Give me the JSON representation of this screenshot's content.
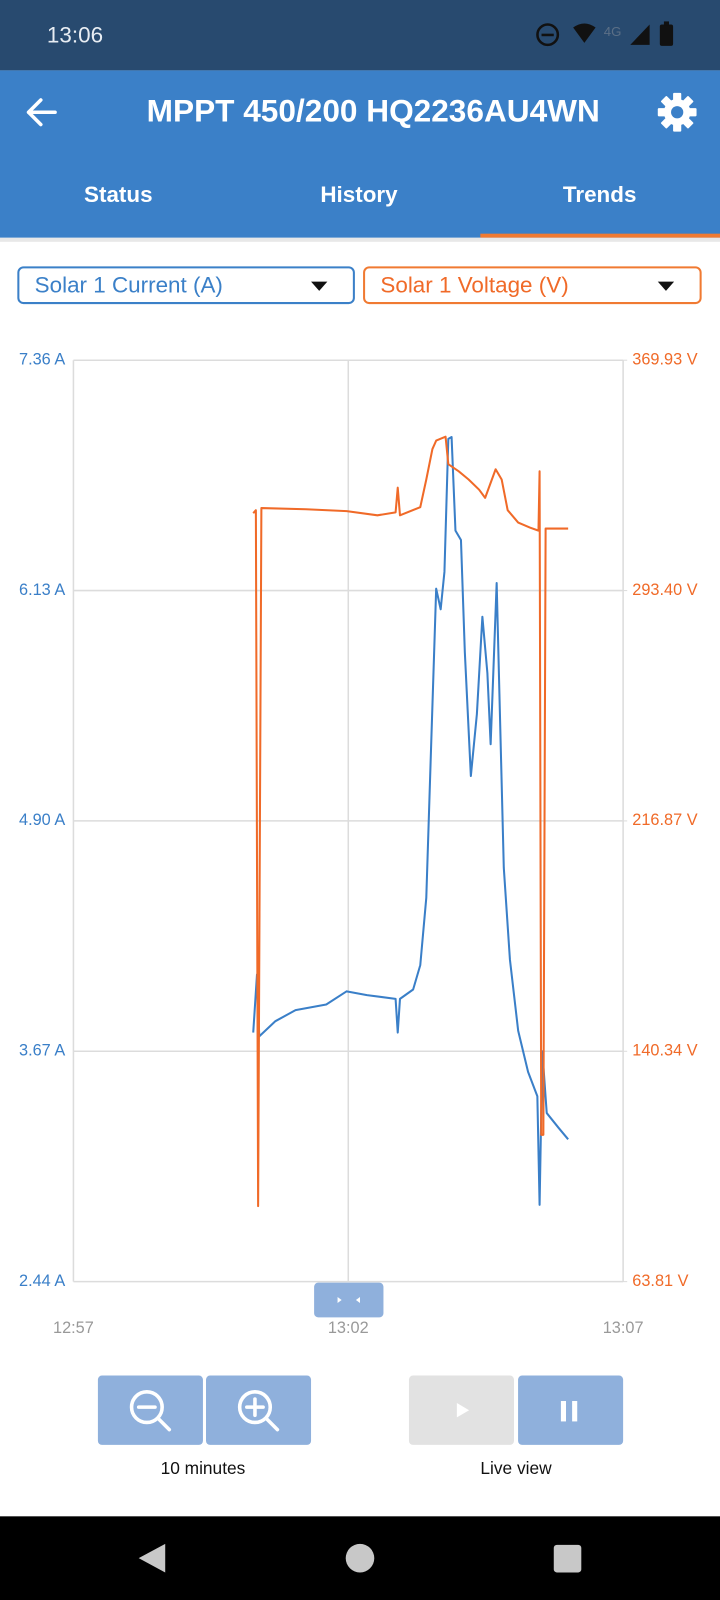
{
  "status_bar": {
    "time": "13:06",
    "network": "4G"
  },
  "app_bar": {
    "title": "MPPT 450/200 HQ2236AU4WN"
  },
  "tabs": [
    "Status",
    "History",
    "Trends"
  ],
  "selectors": [
    "Solar 1 Current (A)",
    "Solar 1 Voltage (V)"
  ],
  "chart_data": {
    "type": "line",
    "xlim": [
      0,
      10
    ],
    "xticks": [
      {
        "value": 0,
        "label": "12:57"
      },
      {
        "value": 5,
        "label": "13:02"
      },
      {
        "value": 10,
        "label": "13:07"
      }
    ],
    "ylim": [
      2.44,
      7.36
    ],
    "yticks": [
      {
        "value": 2.44,
        "label": "2.44 A"
      },
      {
        "value": 3.67,
        "label": "3.67 A"
      },
      {
        "value": 4.9,
        "label": "4.90 A"
      },
      {
        "value": 6.13,
        "label": "6.13 A"
      },
      {
        "value": 7.36,
        "label": "7.36 A"
      }
    ],
    "y2lim": [
      63.81,
      369.93
    ],
    "y2ticks": [
      {
        "value": 63.81,
        "label": "63.81 V"
      },
      {
        "value": 140.34,
        "label": "140.34 V"
      },
      {
        "value": 216.87,
        "label": "216.87 V"
      },
      {
        "value": 293.4,
        "label": "293.40 V"
      },
      {
        "value": 369.93,
        "label": "369.93 V"
      }
    ],
    "grid": true,
    "series": [
      {
        "name": "Solar 1 Current (A)",
        "color": "#3a7fc8",
        "x": [
          3.27,
          3.34,
          3.38,
          3.67,
          4.04,
          4.6,
          4.97,
          5.34,
          5.86,
          5.9,
          5.94,
          6.18,
          6.31,
          6.42,
          6.49,
          6.6,
          6.68,
          6.75,
          6.82,
          6.88,
          6.95,
          7.05,
          7.12,
          7.23,
          7.34,
          7.44,
          7.53,
          7.59,
          7.7,
          7.75,
          7.83,
          7.94,
          8.09,
          8.27,
          8.44,
          8.48,
          8.53,
          8.61,
          8.83,
          9.0
        ],
        "values": [
          3.77,
          4.08,
          3.75,
          3.83,
          3.89,
          3.92,
          3.99,
          3.97,
          3.95,
          3.77,
          3.95,
          4.0,
          4.13,
          4.49,
          5.14,
          6.14,
          6.03,
          6.23,
          6.94,
          6.95,
          6.45,
          6.4,
          5.8,
          5.14,
          5.47,
          5.99,
          5.69,
          5.31,
          6.17,
          5.58,
          4.65,
          4.16,
          3.78,
          3.56,
          3.43,
          2.85,
          3.67,
          3.34,
          3.26,
          3.2
        ]
      },
      {
        "name": "Solar 1 Voltage (V)",
        "color": "#f06a28",
        "axis": "y2",
        "x": [
          3.27,
          3.32,
          3.36,
          3.42,
          4.23,
          4.97,
          5.53,
          5.86,
          5.9,
          5.94,
          6.31,
          6.42,
          6.53,
          6.6,
          6.77,
          6.82,
          7.01,
          7.19,
          7.38,
          7.49,
          7.68,
          7.79,
          7.9,
          8.09,
          8.31,
          8.46,
          8.48,
          8.51,
          8.55,
          8.59,
          9.0
        ],
        "values": [
          319.1,
          320.1,
          88.9,
          320.8,
          320.4,
          319.8,
          318.4,
          319.4,
          327.6,
          318.4,
          321.1,
          330.3,
          340.4,
          343.2,
          344.5,
          335.4,
          333.0,
          330.3,
          326.9,
          324.2,
          333.7,
          330.3,
          320.1,
          316.0,
          314.3,
          313.3,
          333.0,
          112.6,
          112.6,
          314.0,
          314.0
        ]
      }
    ]
  },
  "controls": {
    "zoom_label": "10 minutes",
    "live_label": "Live view"
  }
}
